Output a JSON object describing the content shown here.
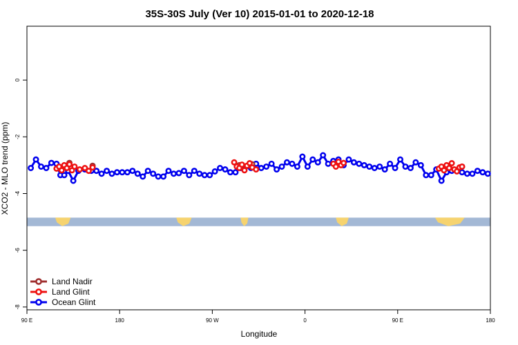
{
  "chart_data": {
    "type": "scatter",
    "title": "35S-30S July (Ver 10)   2015-01-01 to 2020-12-18",
    "xlabel": "Longitude",
    "ylabel": "XCO2 - MLO trend (ppm)",
    "xlim": [
      90,
      450
    ],
    "ylim": [
      -8.1,
      1.9
    ],
    "x_ticks": [
      {
        "value": 90,
        "label": "90 E"
      },
      {
        "value": 162,
        "label": "180"
      },
      {
        "value": 234,
        "label": "90 W"
      },
      {
        "value": 306,
        "label": "0"
      },
      {
        "value": 378,
        "label": "90 E"
      },
      {
        "value": 450,
        "label": "180"
      }
    ],
    "y_ticks": [
      {
        "value": 0,
        "label": "0"
      },
      {
        "value": -2,
        "label": "-2"
      },
      {
        "value": -4,
        "label": "-4"
      },
      {
        "value": -6,
        "label": "-6"
      },
      {
        "value": -8,
        "label": "-8"
      }
    ],
    "map_strip": {
      "y_range": [
        -4.85,
        -5.15
      ],
      "ocean_color": "#a3b8d5",
      "land_color": "#f6d36f",
      "land_segments": [
        [
          112,
          124
        ],
        [
          206,
          218
        ],
        [
          256,
          262
        ],
        [
          330,
          340
        ],
        [
          407,
          430
        ]
      ]
    },
    "legend": {
      "position": "bottom-left"
    },
    "series": [
      {
        "name": "Land Nadir",
        "color": "#a03030",
        "x": [
          123,
          141,
          255,
          265,
          330,
          418,
          428
        ],
        "y": [
          -2.92,
          -3.02,
          -3.0,
          -2.97,
          -2.98,
          -3.05,
          -3.05
        ]
      },
      {
        "name": "Land Glint",
        "color": "#ee1111",
        "x": [
          113,
          115,
          117,
          119,
          121,
          123,
          125,
          127,
          131,
          135,
          138,
          141,
          251,
          253,
          255,
          257,
          259,
          261,
          263,
          265,
          268,
          328,
          330,
          332,
          334,
          336,
          410,
          412,
          414,
          416,
          418,
          420,
          422,
          424,
          426,
          428
        ],
        "y": [
          -3.12,
          -3.05,
          -3.18,
          -3.0,
          -3.1,
          -2.97,
          -3.18,
          -3.05,
          -3.15,
          -3.1,
          -3.2,
          -3.08,
          -2.9,
          -3.05,
          -3.1,
          -2.98,
          -3.18,
          -3.02,
          -2.93,
          -3.08,
          -3.15,
          -2.95,
          -3.05,
          -2.88,
          -3.0,
          -2.92,
          -3.12,
          -3.05,
          -3.18,
          -3.0,
          -3.1,
          -2.93,
          -3.15,
          -3.22,
          -3.08,
          -3.05
        ],
        "connected": false
      },
      {
        "name": "Ocean Glint",
        "color": "#0000ee",
        "x": [
          93,
          97,
          101,
          105,
          109,
          113,
          116,
          119,
          122,
          126,
          130,
          135,
          140,
          144,
          148,
          152,
          156,
          160,
          164,
          168,
          172,
          176,
          180,
          184,
          188,
          192,
          196,
          200,
          204,
          208,
          212,
          216,
          220,
          224,
          228,
          232,
          236,
          240,
          244,
          248,
          252,
          256,
          260,
          264,
          268,
          272,
          276,
          280,
          284,
          288,
          292,
          296,
          300,
          304,
          308,
          312,
          316,
          320,
          324,
          328,
          332,
          336,
          340,
          344,
          348,
          352,
          356,
          360,
          364,
          368,
          372,
          376,
          380,
          384,
          388,
          392,
          396,
          400,
          404,
          408,
          412,
          416,
          420,
          424,
          428,
          432,
          436,
          440,
          444,
          448
        ],
        "y": [
          -3.1,
          -2.8,
          -3.05,
          -3.1,
          -2.92,
          -2.95,
          -3.35,
          -3.35,
          -3.2,
          -3.55,
          -3.2,
          -3.15,
          -3.2,
          -3.2,
          -3.3,
          -3.2,
          -3.3,
          -3.25,
          -3.25,
          -3.25,
          -3.2,
          -3.3,
          -3.4,
          -3.2,
          -3.3,
          -3.4,
          -3.4,
          -3.2,
          -3.3,
          -3.28,
          -3.2,
          -3.35,
          -3.2,
          -3.3,
          -3.35,
          -3.35,
          -3.22,
          -3.1,
          -3.15,
          -3.25,
          -3.25,
          -3.1,
          -3.05,
          -3.1,
          -2.95,
          -3.1,
          -3.05,
          -2.95,
          -3.15,
          -3.05,
          -2.9,
          -2.95,
          -3.05,
          -2.7,
          -3.05,
          -2.8,
          -2.9,
          -2.65,
          -2.95,
          -2.85,
          -2.8,
          -3.0,
          -2.8,
          -2.9,
          -2.95,
          -3.0,
          -3.05,
          -3.1,
          -3.05,
          -3.15,
          -2.95,
          -3.1,
          -2.8,
          -3.05,
          -3.1,
          -2.9,
          -3.0,
          -3.35,
          -3.35,
          -3.15,
          -3.55,
          -3.25,
          -3.2,
          -3.2,
          -3.25,
          -3.3,
          -3.3,
          -3.2,
          -3.25,
          -3.3
        ],
        "connected": true
      }
    ]
  }
}
